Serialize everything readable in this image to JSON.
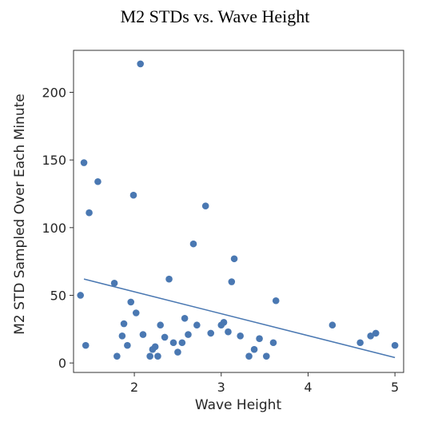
{
  "chart_data": {
    "type": "scatter",
    "title": "M2 STDs vs. Wave Height",
    "xlabel": "Wave Height",
    "ylabel": "M2 STD Sampled Over Each Minute",
    "xlim": [
      1.3,
      5.1
    ],
    "ylim": [
      -7,
      231
    ],
    "xticks": [
      "2",
      "3",
      "4",
      "5"
    ],
    "yticks": [
      "0",
      "50",
      "100",
      "150",
      "200"
    ],
    "grid": false,
    "point_color": "#4a78b2",
    "line_color": "#4a78b2",
    "points": [
      {
        "x": 1.38,
        "y": 50
      },
      {
        "x": 1.42,
        "y": 148
      },
      {
        "x": 1.44,
        "y": 13
      },
      {
        "x": 1.48,
        "y": 111
      },
      {
        "x": 1.58,
        "y": 134
      },
      {
        "x": 1.77,
        "y": 59
      },
      {
        "x": 1.8,
        "y": 5
      },
      {
        "x": 1.86,
        "y": 20
      },
      {
        "x": 1.88,
        "y": 29
      },
      {
        "x": 1.92,
        "y": 13
      },
      {
        "x": 1.96,
        "y": 45
      },
      {
        "x": 1.99,
        "y": 124
      },
      {
        "x": 2.02,
        "y": 37
      },
      {
        "x": 2.07,
        "y": 221
      },
      {
        "x": 2.1,
        "y": 21
      },
      {
        "x": 2.18,
        "y": 5
      },
      {
        "x": 2.21,
        "y": 10
      },
      {
        "x": 2.24,
        "y": 12
      },
      {
        "x": 2.27,
        "y": 5
      },
      {
        "x": 2.3,
        "y": 28
      },
      {
        "x": 2.35,
        "y": 19
      },
      {
        "x": 2.4,
        "y": 62
      },
      {
        "x": 2.45,
        "y": 15
      },
      {
        "x": 2.5,
        "y": 8
      },
      {
        "x": 2.55,
        "y": 15
      },
      {
        "x": 2.58,
        "y": 33
      },
      {
        "x": 2.62,
        "y": 21
      },
      {
        "x": 2.68,
        "y": 88
      },
      {
        "x": 2.72,
        "y": 28
      },
      {
        "x": 2.82,
        "y": 116
      },
      {
        "x": 2.88,
        "y": 22
      },
      {
        "x": 3.0,
        "y": 28
      },
      {
        "x": 3.03,
        "y": 30
      },
      {
        "x": 3.08,
        "y": 23
      },
      {
        "x": 3.12,
        "y": 60
      },
      {
        "x": 3.15,
        "y": 77
      },
      {
        "x": 3.22,
        "y": 20
      },
      {
        "x": 3.32,
        "y": 5
      },
      {
        "x": 3.38,
        "y": 10
      },
      {
        "x": 3.44,
        "y": 18
      },
      {
        "x": 3.52,
        "y": 5
      },
      {
        "x": 3.6,
        "y": 15
      },
      {
        "x": 3.63,
        "y": 46
      },
      {
        "x": 4.28,
        "y": 28
      },
      {
        "x": 4.6,
        "y": 15
      },
      {
        "x": 4.72,
        "y": 20
      },
      {
        "x": 4.78,
        "y": 22
      },
      {
        "x": 5.0,
        "y": 13
      }
    ],
    "trendline": {
      "x": [
        1.42,
        5.0
      ],
      "y": [
        62,
        4
      ]
    }
  }
}
